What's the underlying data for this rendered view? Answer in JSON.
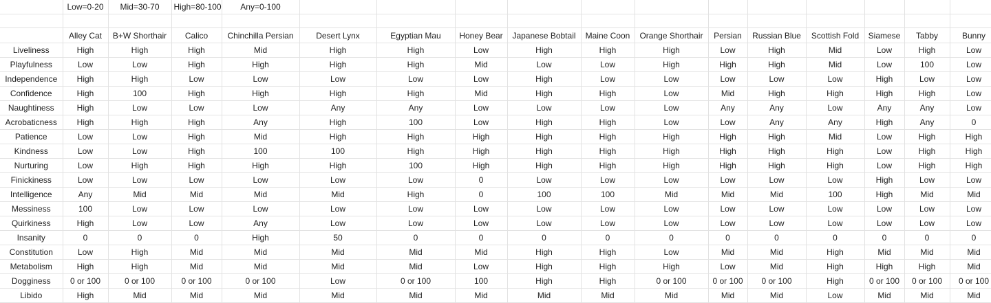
{
  "legend": [
    "Low=0-20",
    "Mid=30-70",
    "High=80-100",
    "Any=0-100"
  ],
  "columns": [
    "Alley Cat",
    "B+W Shorthair",
    "Calico",
    "Chinchilla Persian",
    "Desert Lynx",
    "Egyptian Mau",
    "Honey Bear",
    "Japanese Bobtail",
    "Maine Coon",
    "Orange Shorthair",
    "Persian",
    "Russian Blue",
    "Scottish Fold",
    "Siamese",
    "Tabby",
    "Bunny"
  ],
  "rows": [
    {
      "label": "Liveliness",
      "cells": [
        "High",
        "High",
        "High",
        "Mid",
        "High",
        "High",
        "Low",
        "High",
        "High",
        "High",
        "Low",
        "High",
        "Mid",
        "Low",
        "High",
        "Low"
      ]
    },
    {
      "label": "Playfulness",
      "cells": [
        "Low",
        "Low",
        "High",
        "High",
        "High",
        "High",
        "Mid",
        "Low",
        "Low",
        "High",
        "High",
        "High",
        "Mid",
        "Low",
        "100",
        "Low"
      ]
    },
    {
      "label": "Independence",
      "cells": [
        "High",
        "High",
        "Low",
        "Low",
        "Low",
        "Low",
        "Low",
        "High",
        "Low",
        "Low",
        "Low",
        "Low",
        "Low",
        "High",
        "Low",
        "Low"
      ]
    },
    {
      "label": "Confidence",
      "cells": [
        "High",
        "100",
        "High",
        "High",
        "High",
        "High",
        "Mid",
        "High",
        "High",
        "Low",
        "Mid",
        "High",
        "High",
        "High",
        "High",
        "Low"
      ]
    },
    {
      "label": "Naughtiness",
      "cells": [
        "High",
        "Low",
        "Low",
        "Low",
        "Any",
        "Any",
        "Low",
        "Low",
        "Low",
        "Low",
        "Any",
        "Any",
        "Low",
        "Any",
        "Any",
        "Low"
      ]
    },
    {
      "label": "Acrobaticness",
      "cells": [
        "High",
        "High",
        "High",
        "Any",
        "High",
        "100",
        "Low",
        "High",
        "High",
        "Low",
        "Low",
        "Any",
        "Any",
        "High",
        "Any",
        "0"
      ]
    },
    {
      "label": "Patience",
      "cells": [
        "Low",
        "Low",
        "High",
        "Mid",
        "High",
        "High",
        "High",
        "High",
        "High",
        "High",
        "High",
        "High",
        "Mid",
        "Low",
        "High",
        "High"
      ]
    },
    {
      "label": "Kindness",
      "cells": [
        "Low",
        "Low",
        "High",
        "100",
        "100",
        "High",
        "High",
        "High",
        "High",
        "High",
        "High",
        "High",
        "High",
        "Low",
        "High",
        "High"
      ]
    },
    {
      "label": "Nurturing",
      "cells": [
        "Low",
        "High",
        "High",
        "High",
        "High",
        "100",
        "High",
        "High",
        "High",
        "High",
        "High",
        "High",
        "High",
        "Low",
        "High",
        "High"
      ]
    },
    {
      "label": "Finickiness",
      "cells": [
        "Low",
        "Low",
        "Low",
        "Low",
        "Low",
        "Low",
        "0",
        "Low",
        "Low",
        "Low",
        "Low",
        "Low",
        "Low",
        "High",
        "Low",
        "Low"
      ]
    },
    {
      "label": "Intelligence",
      "cells": [
        "Any",
        "Mid",
        "Mid",
        "Mid",
        "Mid",
        "High",
        "0",
        "100",
        "100",
        "Mid",
        "Mid",
        "Mid",
        "100",
        "High",
        "Mid",
        "Mid"
      ]
    },
    {
      "label": "Messiness",
      "cells": [
        "100",
        "Low",
        "Low",
        "Low",
        "Low",
        "Low",
        "Low",
        "Low",
        "Low",
        "Low",
        "Low",
        "Low",
        "Low",
        "Low",
        "Low",
        "Low"
      ]
    },
    {
      "label": "Quirkiness",
      "cells": [
        "High",
        "Low",
        "Low",
        "Any",
        "Low",
        "Low",
        "Low",
        "Low",
        "Low",
        "Low",
        "Low",
        "Low",
        "Low",
        "Low",
        "Low",
        "Low"
      ]
    },
    {
      "label": "Insanity",
      "cells": [
        "0",
        "0",
        "0",
        "High",
        "50",
        "0",
        "0",
        "0",
        "0",
        "0",
        "0",
        "0",
        "0",
        "0",
        "0",
        "0"
      ]
    },
    {
      "label": "Constitution",
      "cells": [
        "Low",
        "High",
        "Mid",
        "Mid",
        "Mid",
        "Mid",
        "Mid",
        "High",
        "High",
        "Low",
        "Mid",
        "Mid",
        "High",
        "Mid",
        "Mid",
        "Mid"
      ]
    },
    {
      "label": "Metabolism",
      "cells": [
        "High",
        "High",
        "Mid",
        "Mid",
        "Mid",
        "Mid",
        "Low",
        "High",
        "High",
        "High",
        "Low",
        "Mid",
        "High",
        "High",
        "High",
        "Mid"
      ]
    },
    {
      "label": "Dogginess",
      "cells": [
        "0 or 100",
        "0 or 100",
        "0 or 100",
        "0 or 100",
        "Low",
        "0 or 100",
        "100",
        "High",
        "High",
        "0 or 100",
        "0 or 100",
        "0 or 100",
        "High",
        "0 or 100",
        "0 or 100",
        "0 or 100"
      ]
    },
    {
      "label": "Libido",
      "cells": [
        "High",
        "Mid",
        "Mid",
        "Mid",
        "Mid",
        "Mid",
        "Mid",
        "Mid",
        "Mid",
        "Mid",
        "Mid",
        "Mid",
        "Low",
        "Mid",
        "Mid",
        "Mid"
      ]
    }
  ]
}
